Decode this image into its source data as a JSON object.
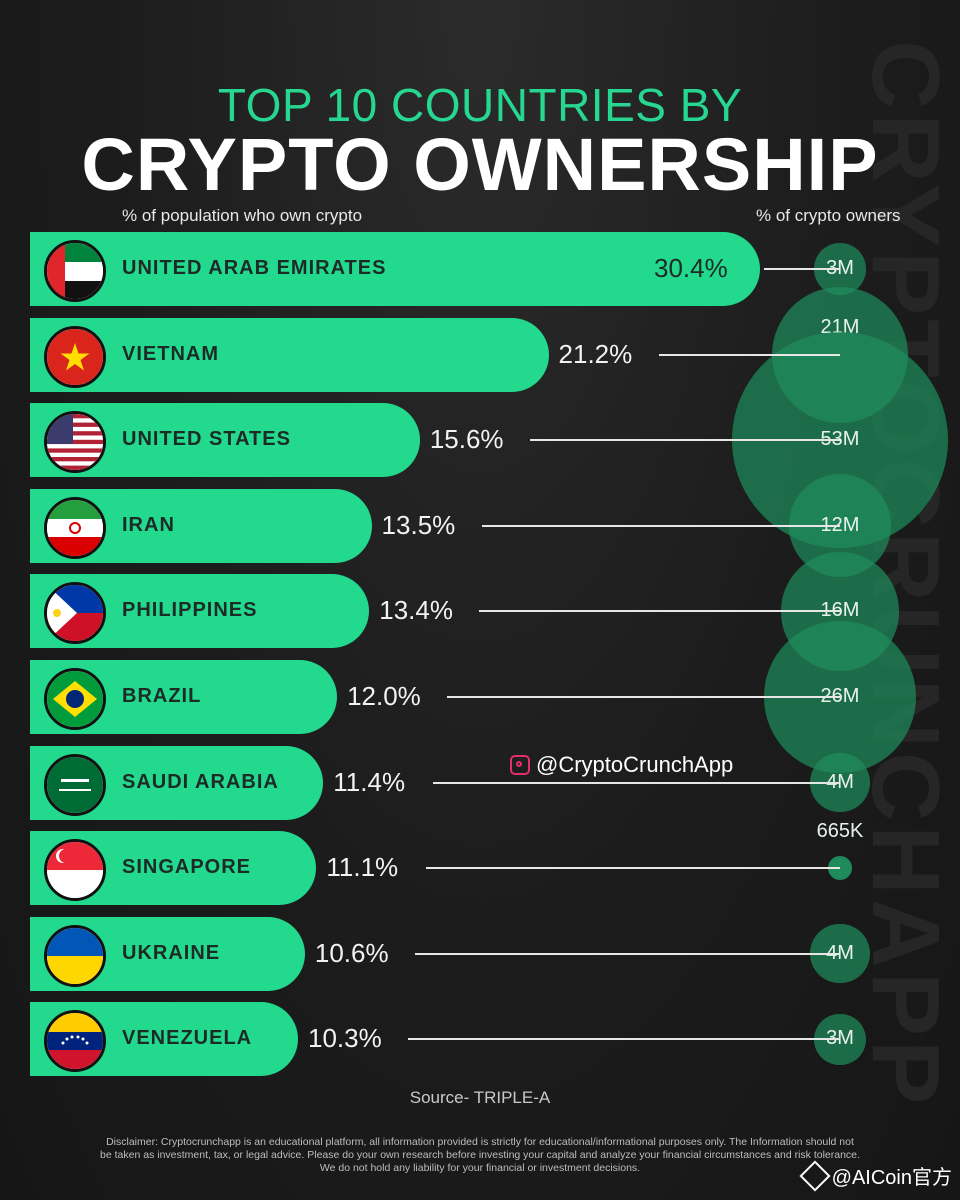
{
  "header": {
    "subtitle": "TOP 10 COUNTRIES BY",
    "title": "CRYPTO OWNERSHIP",
    "left_column_label": "% of population who own crypto",
    "right_column_label": "% of crypto owners"
  },
  "watermark": "CRYPTOCRUNCHAPP",
  "handle": "@CryptoCrunchApp",
  "source": "Source- TRIPLE-A",
  "disclaimer": "Disclaimer: Cryptocrunchapp is an educational platform, all information provided is strictly for educational/informational purposes only. The Information should not be taken as investment, tax, or legal advice. Please do your own research before investing your capital and analyze your financial circumstances and risk tolerance. We do not hold any liability for your financial or investment decisions.",
  "corner_tag": "@AICoin官方",
  "colors": {
    "accent": "#22d98e",
    "bubble": "#1f8a5a",
    "background": "#1c1c1c"
  },
  "chart_data": {
    "type": "bar",
    "title": "TOP 10 COUNTRIES BY CRYPTO OWNERSHIP",
    "xlabel": "% of population who own crypto",
    "ylabel": "",
    "categories": [
      "UNITED ARAB EMIRATES",
      "VIETNAM",
      "UNITED STATES",
      "IRAN",
      "PHILIPPINES",
      "BRAZIL",
      "SAUDI ARABIA",
      "SINGAPORE",
      "UKRAINE",
      "VENEZUELA"
    ],
    "series": [
      {
        "values": [
          30.4,
          21.2,
          15.6,
          13.5,
          13.4,
          12.0,
          11.4,
          11.1,
          10.6,
          10.3
        ],
        "labels": [
          "30.4%",
          "21.2%",
          "15.6%",
          "13.5%",
          "13.4%",
          "12.0%",
          "11.4%",
          "11.1%",
          "10.6%",
          "10.3%"
        ]
      },
      {
        "values": [
          3000000,
          21000000,
          53000000,
          12000000,
          16000000,
          26000000,
          4000000,
          665000,
          4000000,
          3000000
        ],
        "labels": [
          "3M",
          "21M",
          "53M",
          "12M",
          "16M",
          "26M",
          "4M",
          "665K",
          "4M",
          "3M"
        ]
      }
    ],
    "flags": [
      "uae-flag-icon",
      "vietnam-flag-icon",
      "usa-flag-icon",
      "iran-flag-icon",
      "philippines-flag-icon",
      "brazil-flag-icon",
      "saudi-flag-icon",
      "singapore-flag-icon",
      "ukraine-flag-icon",
      "venezuela-flag-icon"
    ],
    "grid": false
  }
}
